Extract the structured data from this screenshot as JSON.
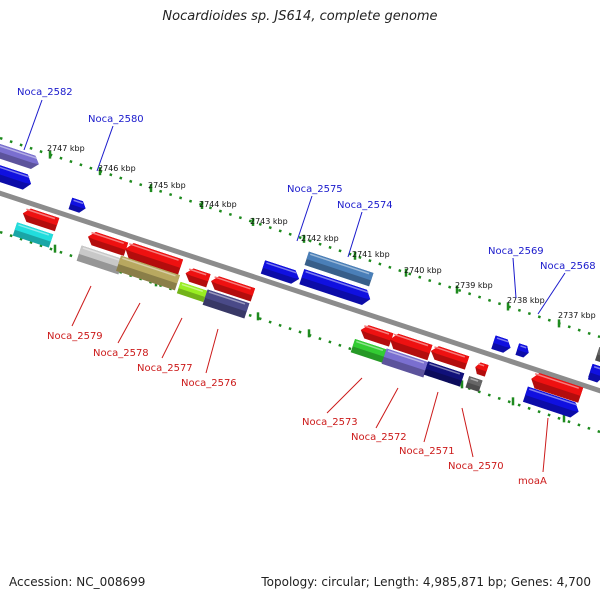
{
  "title": "Nocardioides sp. JS614, complete genome",
  "footer": {
    "accession": "Accession: NC_008699",
    "summary": "Topology: circular; Length: 4,985,871 bp; Genes: 4,700"
  },
  "colors": {
    "background": "#ffffff",
    "backbone": "#8c8c8c",
    "tick": "#1e8a1e",
    "label_top": "#1a1acc",
    "label_bottom": "#cc1a1a"
  },
  "kbp_labels": [
    "2747 kbp",
    "2746 kbp",
    "2745 kbp",
    "2744 kbp",
    "2743 kbp",
    "2742 kbp",
    "2741 kbp",
    "2740 kbp",
    "2739 kbp",
    "2738 kbp",
    "2737 kbp"
  ],
  "top_gene_labels": [
    "Noca_2582",
    "Noca_2580",
    "Noca_2575",
    "Noca_2574",
    "Noca_2569",
    "Noca_2568"
  ],
  "bottom_gene_labels": [
    "Noca_2579",
    "Noca_2578",
    "Noca_2577",
    "Noca_2576",
    "Noca_2573",
    "Noca_2572",
    "Noca_2571",
    "Noca_2570",
    "moaA"
  ],
  "gene_blocks": [
    {
      "strand": "upper",
      "color": "#7a6fd0"
    },
    {
      "strand": "upper",
      "color": "#1010e0"
    },
    {
      "strand": "upper",
      "color": "#1010e0"
    },
    {
      "strand": "upper",
      "color": "#1010e0"
    },
    {
      "strand": "upper",
      "color": "#4a7fb8"
    },
    {
      "strand": "upper",
      "color": "#1010e0"
    },
    {
      "strand": "upper",
      "color": "#1010e0"
    },
    {
      "strand": "upper",
      "color": "#1010e0"
    },
    {
      "strand": "upper",
      "color": "#1010e0"
    },
    {
      "strand": "lower",
      "color": "#ee1111"
    },
    {
      "strand": "lower",
      "color": "#22dddd"
    },
    {
      "strand": "lower",
      "color": "#ee1111"
    },
    {
      "strand": "lower",
      "color": "#ee1111"
    },
    {
      "strand": "lower",
      "color": "#c8c8c8"
    },
    {
      "strand": "lower",
      "color": "#b8a860"
    },
    {
      "strand": "lower",
      "color": "#ee1111"
    },
    {
      "strand": "lower",
      "color": "#ee1111"
    },
    {
      "strand": "lower",
      "color": "#99ee22"
    },
    {
      "strand": "lower",
      "color": "#4a4a88"
    },
    {
      "strand": "lower",
      "color": "#ee1111"
    },
    {
      "strand": "lower",
      "color": "#ee1111"
    },
    {
      "strand": "lower",
      "color": "#ee1111"
    },
    {
      "strand": "lower",
      "color": "#33cc33"
    },
    {
      "strand": "lower",
      "color": "#7a6fd0"
    },
    {
      "strand": "lower",
      "color": "#10107a"
    },
    {
      "strand": "lower",
      "color": "#ee1111"
    },
    {
      "strand": "lower",
      "color": "#666666"
    },
    {
      "strand": "lower",
      "color": "#ee1111"
    },
    {
      "strand": "lower",
      "color": "#1010e0"
    },
    {
      "strand": "lower",
      "color": "#666666"
    },
    {
      "strand": "lower",
      "color": "#1010e0"
    }
  ]
}
